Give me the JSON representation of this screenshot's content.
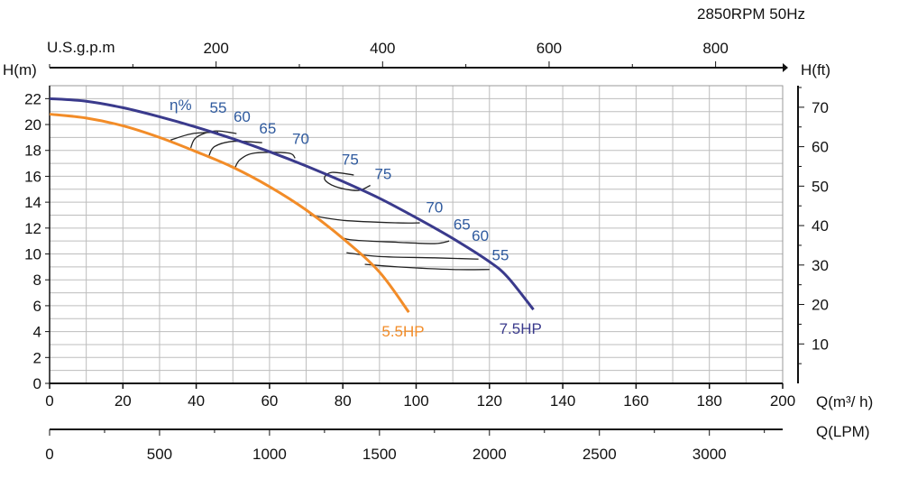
{
  "chart_data": {
    "type": "line",
    "subtitle": "2850RPM  50Hz",
    "xlabel": "Q(m³/ h)",
    "ylabel": "H(m)",
    "xlim": [
      0,
      200
    ],
    "ylim": [
      0,
      23
    ],
    "grid": true,
    "x_ticks": [
      "0",
      "20",
      "40",
      "60",
      "80",
      "100",
      "120",
      "140",
      "160",
      "180",
      "200"
    ],
    "y_ticks": [
      "0",
      "2",
      "4",
      "6",
      "8",
      "10",
      "12",
      "14",
      "16",
      "18",
      "20",
      "22"
    ],
    "top_axis": {
      "label": "U.S.g.p.m",
      "ticks": [
        {
          "value": 200,
          "text": "200"
        },
        {
          "value": 400,
          "text": "400"
        },
        {
          "value": 600,
          "text": "600"
        },
        {
          "value": 800,
          "text": "800"
        }
      ]
    },
    "right_axis": {
      "label": "H(ft)",
      "ticks": [
        {
          "value": 10,
          "text": "10"
        },
        {
          "value": 20,
          "text": "20"
        },
        {
          "value": 30,
          "text": "30"
        },
        {
          "value": 40,
          "text": "40"
        },
        {
          "value": 50,
          "text": "50"
        },
        {
          "value": 60,
          "text": "60"
        },
        {
          "value": 70,
          "text": "70"
        }
      ]
    },
    "bottom_axis": {
      "label": "Q(LPM)",
      "ticks": [
        {
          "value": 0,
          "text": "0"
        },
        {
          "value": 500,
          "text": "500"
        },
        {
          "value": 1000,
          "text": "1000"
        },
        {
          "value": 1500,
          "text": "1500"
        },
        {
          "value": 2000,
          "text": "2000"
        },
        {
          "value": 2500,
          "text": "2500"
        },
        {
          "value": 3000,
          "text": "3000"
        }
      ]
    },
    "series": [
      {
        "name": "7.5HP",
        "color": "#3a3a8c",
        "points": [
          [
            0,
            22
          ],
          [
            10,
            21.8
          ],
          [
            20,
            21.3
          ],
          [
            30,
            20.6
          ],
          [
            40,
            19.8
          ],
          [
            50,
            18.9
          ],
          [
            60,
            17.9
          ],
          [
            70,
            16.8
          ],
          [
            80,
            15.6
          ],
          [
            90,
            14.3
          ],
          [
            100,
            12.8
          ],
          [
            110,
            11.2
          ],
          [
            120,
            9.4
          ],
          [
            125,
            8.2
          ],
          [
            132,
            5.7
          ]
        ]
      },
      {
        "name": "5.5HP",
        "color": "#f28c28",
        "points": [
          [
            0,
            20.8
          ],
          [
            10,
            20.5
          ],
          [
            20,
            19.9
          ],
          [
            30,
            19.0
          ],
          [
            40,
            17.9
          ],
          [
            50,
            16.7
          ],
          [
            60,
            15.2
          ],
          [
            70,
            13.4
          ],
          [
            80,
            11.2
          ],
          [
            90,
            8.6
          ],
          [
            98,
            5.5
          ]
        ]
      }
    ],
    "efficiency": {
      "label": "η%",
      "labels": [
        {
          "text": "55",
          "x": 46,
          "y": 20.9
        },
        {
          "text": "60",
          "x": 52.5,
          "y": 20.2
        },
        {
          "text": "65",
          "x": 59.5,
          "y": 19.3
        },
        {
          "text": "70",
          "x": 68.5,
          "y": 18.5
        },
        {
          "text": "75",
          "x": 82,
          "y": 16.9
        },
        {
          "text": "75",
          "x": 91,
          "y": 15.8
        },
        {
          "text": "70",
          "x": 105,
          "y": 13.2
        },
        {
          "text": "65",
          "x": 112.5,
          "y": 11.9
        },
        {
          "text": "60",
          "x": 117.5,
          "y": 11.0
        },
        {
          "text": "55",
          "x": 123,
          "y": 9.5
        }
      ],
      "contours": [
        [
          [
            33,
            18.8
          ],
          [
            39,
            19.3
          ],
          [
            46,
            19.4
          ]
        ],
        [
          [
            38.5,
            18.2
          ],
          [
            40,
            19
          ],
          [
            45,
            19.5
          ],
          [
            51,
            19.3
          ]
        ],
        [
          [
            43.5,
            17.6
          ],
          [
            45,
            18.3
          ],
          [
            50,
            18.7
          ],
          [
            58,
            18.6
          ]
        ],
        [
          [
            50.5,
            16.6
          ],
          [
            52,
            17.3
          ],
          [
            56,
            17.8
          ],
          [
            65,
            17.8
          ],
          [
            67,
            17.4
          ]
        ],
        [
          [
            87.5,
            15.3
          ],
          [
            84,
            14.9
          ],
          [
            78,
            15.2
          ],
          [
            75,
            15.8
          ],
          [
            77,
            16.3
          ],
          [
            83,
            16.1
          ]
        ],
        [
          [
            71,
            13.0
          ],
          [
            80,
            12.6
          ],
          [
            95,
            12.4
          ],
          [
            101,
            12.4
          ]
        ],
        [
          [
            78.5,
            11.5
          ],
          [
            82,
            11.1
          ],
          [
            95,
            10.9
          ],
          [
            105,
            10.8
          ],
          [
            109,
            11.0
          ]
        ],
        [
          [
            81,
            10.1
          ],
          [
            90,
            9.8
          ],
          [
            105,
            9.7
          ],
          [
            117,
            9.6
          ]
        ],
        [
          [
            86,
            9.2
          ],
          [
            95,
            9.0
          ],
          [
            110,
            8.8
          ],
          [
            120,
            8.8
          ]
        ]
      ]
    }
  }
}
